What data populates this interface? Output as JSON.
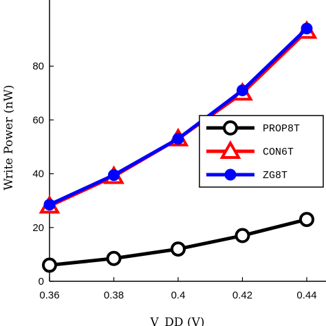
{
  "chart_data": {
    "type": "line",
    "x": [
      0.36,
      0.38,
      0.4,
      0.42,
      0.44
    ],
    "x_tick_labels": [
      "0.36",
      "0.38",
      "0.4",
      "0.42",
      "0.44"
    ],
    "y_ticks": [
      0,
      20,
      40,
      60,
      80
    ],
    "xlim": [
      0.36,
      0.44
    ],
    "ylim": [
      0,
      100
    ],
    "xlabel": "V_DD (V)",
    "ylabel": "Write Power (nW)",
    "grid": false,
    "legend_position": "middle-right",
    "series": [
      {
        "name": "PROP8T",
        "values": [
          6,
          8.5,
          12,
          17,
          23
        ],
        "color": "#000000",
        "marker": "circle"
      },
      {
        "name": "CON6T",
        "values": [
          28,
          39,
          53,
          70,
          93
        ],
        "color": "#ff0000",
        "marker": "triangle"
      },
      {
        "name": "ZG8T",
        "values": [
          28.5,
          39.5,
          53,
          71,
          94
        ],
        "color": "#0000ff",
        "marker": "filled-circle"
      }
    ]
  }
}
